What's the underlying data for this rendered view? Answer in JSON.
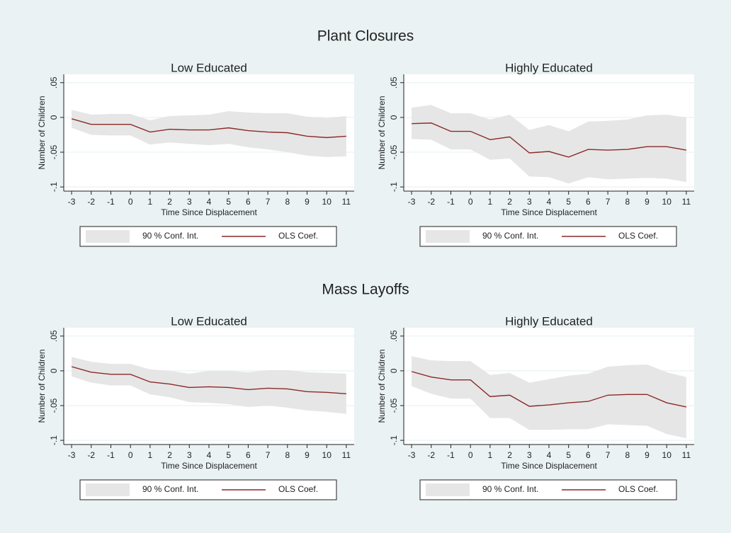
{
  "titles": [
    "Plant Closures",
    "Mass Layoffs"
  ],
  "chart_data": [
    {
      "type": "line",
      "title": "Low Educated",
      "xlabel": "Time Since Displacement",
      "ylabel": "Number of Children",
      "x": [
        -3,
        -2,
        -1,
        0,
        1,
        2,
        3,
        4,
        5,
        6,
        7,
        8,
        9,
        10,
        11
      ],
      "xlim": [
        -3.4,
        11.4
      ],
      "xticks": [
        -3,
        -2,
        -1,
        0,
        1,
        2,
        3,
        4,
        5,
        6,
        7,
        8,
        9,
        10,
        11
      ],
      "ylim": [
        -0.106,
        0.062
      ],
      "yticks": [
        {
          "value": 0.05,
          "label": ".05"
        },
        0,
        {
          "value": -0.05,
          "label": "-.05"
        },
        {
          "value": -0.1,
          "label": "-.1"
        }
      ],
      "grid": true,
      "series": [
        {
          "name": "90 % Conf. Int.",
          "color": "#e6e6e6",
          "upper": [
            0.011,
            0.004,
            0.005,
            0.005,
            -0.004,
            0.002,
            0.003,
            0.004,
            0.009,
            0.007,
            0.006,
            0.006,
            0.001,
            -0.001,
            0.002
          ],
          "lower": [
            -0.015,
            -0.025,
            -0.026,
            -0.026,
            -0.039,
            -0.036,
            -0.038,
            -0.04,
            -0.038,
            -0.043,
            -0.046,
            -0.05,
            -0.055,
            -0.057,
            -0.056
          ]
        },
        {
          "name": "OLS Coef.",
          "color": "#8c2a2a",
          "values": [
            -0.002,
            -0.01,
            -0.01,
            -0.01,
            -0.021,
            -0.017,
            -0.018,
            -0.018,
            -0.015,
            -0.019,
            -0.021,
            -0.022,
            -0.027,
            -0.029,
            -0.027
          ]
        }
      ]
    },
    {
      "type": "line",
      "title": "Highly Educated",
      "xlabel": "Time Since Displacement",
      "ylabel": "Number of Children",
      "x": [
        -3,
        -2,
        -1,
        0,
        1,
        2,
        3,
        4,
        5,
        6,
        7,
        8,
        9,
        10,
        11
      ],
      "xlim": [
        -3.4,
        11.4
      ],
      "xticks": [
        -3,
        -2,
        -1,
        0,
        1,
        2,
        3,
        4,
        5,
        6,
        7,
        8,
        9,
        10,
        11
      ],
      "ylim": [
        -0.106,
        0.062
      ],
      "yticks": [
        {
          "value": 0.05,
          "label": ".05"
        },
        0,
        {
          "value": -0.05,
          "label": "-.05"
        },
        {
          "value": -0.1,
          "label": "-.1"
        }
      ],
      "grid": true,
      "series": [
        {
          "name": "90 % Conf. Int.",
          "color": "#e6e6e6",
          "upper": [
            0.014,
            0.018,
            0.006,
            0.006,
            -0.003,
            0.004,
            -0.018,
            -0.011,
            -0.02,
            -0.006,
            -0.005,
            -0.003,
            0.003,
            0.004,
            0.0
          ],
          "lower": [
            -0.031,
            -0.032,
            -0.046,
            -0.046,
            -0.061,
            -0.059,
            -0.085,
            -0.086,
            -0.095,
            -0.086,
            -0.089,
            -0.088,
            -0.087,
            -0.088,
            -0.093
          ]
        },
        {
          "name": "OLS Coef.",
          "color": "#8c2a2a",
          "values": [
            -0.009,
            -0.008,
            -0.02,
            -0.02,
            -0.032,
            -0.028,
            -0.051,
            -0.049,
            -0.057,
            -0.046,
            -0.047,
            -0.046,
            -0.042,
            -0.042,
            -0.047
          ]
        }
      ]
    },
    {
      "type": "line",
      "title": "Low Educated",
      "xlabel": "Time Since Displacement",
      "ylabel": "Number of Children",
      "x": [
        -3,
        -2,
        -1,
        0,
        1,
        2,
        3,
        4,
        5,
        6,
        7,
        8,
        9,
        10,
        11
      ],
      "xlim": [
        -3.4,
        11.4
      ],
      "xticks": [
        -3,
        -2,
        -1,
        0,
        1,
        2,
        3,
        4,
        5,
        6,
        7,
        8,
        9,
        10,
        11
      ],
      "ylim": [
        -0.106,
        0.062
      ],
      "yticks": [
        {
          "value": 0.05,
          "label": ".05"
        },
        0,
        {
          "value": -0.05,
          "label": "-.05"
        },
        {
          "value": -0.1,
          "label": "-.1"
        }
      ],
      "grid": true,
      "series": [
        {
          "name": "90 % Conf. Int.",
          "color": "#e6e6e6",
          "upper": [
            0.02,
            0.013,
            0.01,
            0.01,
            0.002,
            0.0,
            -0.004,
            0.0,
            0.0,
            -0.002,
            0.001,
            0.001,
            -0.002,
            -0.003,
            -0.004
          ],
          "lower": [
            -0.008,
            -0.017,
            -0.021,
            -0.021,
            -0.034,
            -0.038,
            -0.045,
            -0.046,
            -0.048,
            -0.052,
            -0.05,
            -0.053,
            -0.057,
            -0.059,
            -0.062
          ]
        },
        {
          "name": "OLS Coef.",
          "color": "#8c2a2a",
          "values": [
            0.006,
            -0.002,
            -0.005,
            -0.005,
            -0.016,
            -0.019,
            -0.024,
            -0.023,
            -0.024,
            -0.027,
            -0.025,
            -0.026,
            -0.03,
            -0.031,
            -0.033
          ]
        }
      ]
    },
    {
      "type": "line",
      "title": "Highly Educated",
      "xlabel": "Time Since Displacement",
      "ylabel": "Number of Children",
      "x": [
        -3,
        -2,
        -1,
        0,
        1,
        2,
        3,
        4,
        5,
        6,
        7,
        8,
        9,
        10,
        11
      ],
      "xlim": [
        -3.4,
        11.4
      ],
      "xticks": [
        -3,
        -2,
        -1,
        0,
        1,
        2,
        3,
        4,
        5,
        6,
        7,
        8,
        9,
        10,
        11
      ],
      "ylim": [
        -0.106,
        0.062
      ],
      "yticks": [
        {
          "value": 0.05,
          "label": ".05"
        },
        0,
        {
          "value": -0.05,
          "label": "-.05"
        },
        {
          "value": -0.1,
          "label": "-.1"
        }
      ],
      "grid": true,
      "series": [
        {
          "name": "90 % Conf. Int.",
          "color": "#e6e6e6",
          "upper": [
            0.021,
            0.015,
            0.014,
            0.014,
            -0.006,
            -0.003,
            -0.017,
            -0.012,
            -0.007,
            -0.004,
            0.006,
            0.008,
            0.009,
            -0.002,
            -0.009
          ],
          "lower": [
            -0.022,
            -0.033,
            -0.04,
            -0.04,
            -0.068,
            -0.068,
            -0.085,
            -0.085,
            -0.084,
            -0.084,
            -0.077,
            -0.078,
            -0.079,
            -0.091,
            -0.097
          ]
        },
        {
          "name": "OLS Coef.",
          "color": "#8c2a2a",
          "values": [
            -0.001,
            -0.009,
            -0.013,
            -0.013,
            -0.037,
            -0.035,
            -0.051,
            -0.049,
            -0.046,
            -0.044,
            -0.035,
            -0.034,
            -0.034,
            -0.046,
            -0.052
          ]
        }
      ]
    }
  ]
}
